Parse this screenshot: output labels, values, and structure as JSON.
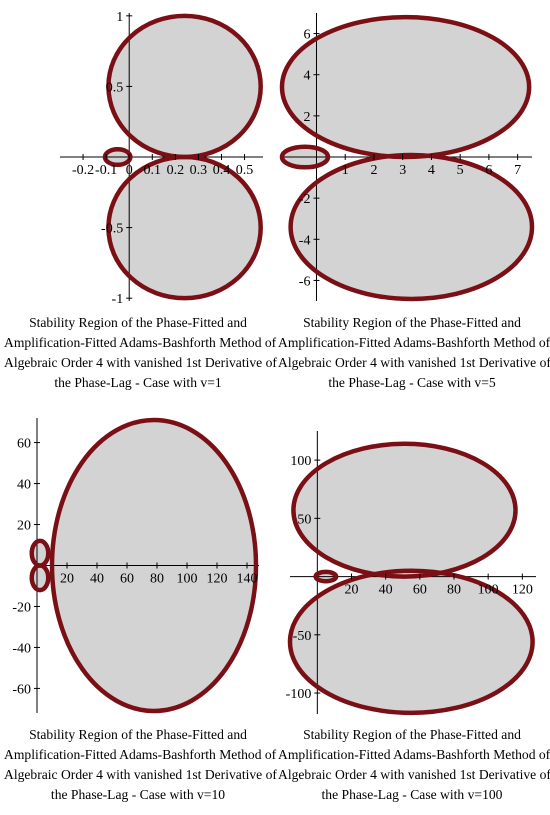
{
  "figure": {
    "panels": [
      {
        "caption": [
          "Stability Region of the Phase-Fitted and",
          "Amplification-Fitted Adams-Bashforth Method of",
          "Algebraic Order 4 with vanished 1st Derivative of",
          "the Phase-Lag  - Case with v=1"
        ]
      },
      {
        "caption": [
          "Stability Region of the Phase-Fitted and",
          "Amplification-Fitted Adams-Bashforth Method of",
          "Algebraic Order 4 with vanished 1st Derivative of",
          "the Phase-Lag  - Case with v=5"
        ]
      },
      {
        "caption": [
          "Stability Region of the Phase-Fitted and",
          "Amplification-Fitted Adams-Bashforth Method of",
          "Algebraic Order 4 with vanished 1st Derivative of",
          "the Phase-Lag  - Case with v=10"
        ]
      },
      {
        "caption": [
          "Stability Region of the Phase-Fitted and",
          "Amplification-Fitted Adams-Bashforth Method of",
          "Algebraic Order 4 with vanished 1st Derivative of",
          "the Phase-Lag  - Case with v=100"
        ]
      }
    ]
  },
  "chart_data": [
    {
      "type": "area",
      "xlim": [
        -0.3,
        0.58
      ],
      "ylim": [
        -1.02,
        1.02
      ],
      "xticks": [
        {
          "v": -0.2,
          "label": "-0.2"
        },
        {
          "v": -0.1,
          "label": "-0.1"
        },
        {
          "v": 0,
          "label": "0"
        },
        {
          "v": 0.1,
          "label": "0.1"
        },
        {
          "v": 0.2,
          "label": "0.2"
        },
        {
          "v": 0.3,
          "label": "0.3"
        },
        {
          "v": 0.4,
          "label": "0.4"
        },
        {
          "v": 0.5,
          "label": "0.5"
        }
      ],
      "yticks": [
        {
          "v": 1,
          "label": "1"
        },
        {
          "v": 0.5,
          "label": "0.5"
        },
        {
          "v": -0.5,
          "label": "-0.5"
        },
        {
          "v": -1,
          "label": "-1"
        }
      ],
      "regions": [
        {
          "cx": 0.24,
          "cy": 0.5,
          "rx": 0.33,
          "ry": 0.5
        },
        {
          "cx": 0.24,
          "cy": -0.5,
          "rx": 0.33,
          "ry": 0.5
        },
        {
          "cx": -0.05,
          "cy": 0,
          "rx": 0.055,
          "ry": 0.055
        }
      ],
      "boundary_color": "#7a1016",
      "fill_color": "#d3d3d3"
    },
    {
      "type": "area",
      "xlim": [
        -1.2,
        7.5
      ],
      "ylim": [
        -7,
        7
      ],
      "xticks": [
        {
          "v": 1,
          "label": "1"
        },
        {
          "v": 2,
          "label": "2"
        },
        {
          "v": 3,
          "label": "3"
        },
        {
          "v": 4,
          "label": "4"
        },
        {
          "v": 5,
          "label": "5"
        },
        {
          "v": 6,
          "label": "6"
        },
        {
          "v": 7,
          "label": "7"
        }
      ],
      "yticks": [
        {
          "v": 6,
          "label": "6"
        },
        {
          "v": 4,
          "label": "4"
        },
        {
          "v": 2,
          "label": "2"
        },
        {
          "v": -2,
          "label": "-2"
        },
        {
          "v": -4,
          "label": "-4"
        },
        {
          "v": -6,
          "label": "-6"
        }
      ],
      "regions": [
        {
          "cx": 3.1,
          "cy": 3.4,
          "rx": 4.3,
          "ry": 3.4
        },
        {
          "cx": 3.3,
          "cy": -3.4,
          "rx": 4.2,
          "ry": 3.5
        },
        {
          "cx": -0.4,
          "cy": 0,
          "rx": 0.8,
          "ry": 0.5
        }
      ],
      "boundary_color": "#7a1016",
      "fill_color": "#d3d3d3"
    },
    {
      "type": "area",
      "xlim": [
        0,
        148
      ],
      "ylim": [
        -72,
        72
      ],
      "xticks": [
        {
          "v": 20,
          "label": "20"
        },
        {
          "v": 40,
          "label": "40"
        },
        {
          "v": 60,
          "label": "60"
        },
        {
          "v": 80,
          "label": "80"
        },
        {
          "v": 100,
          "label": "100"
        },
        {
          "v": 120,
          "label": "120"
        },
        {
          "v": 140,
          "label": "140"
        }
      ],
      "yticks": [
        {
          "v": 60,
          "label": "60"
        },
        {
          "v": 40,
          "label": "40"
        },
        {
          "v": 20,
          "label": "20"
        },
        {
          "v": -20,
          "label": "-20"
        },
        {
          "v": -40,
          "label": "-40"
        },
        {
          "v": -60,
          "label": "-60"
        }
      ],
      "regions": [
        {
          "cx": 78,
          "cy": 0,
          "rx": 68,
          "ry": 71
        },
        {
          "cx": 2,
          "cy": 6,
          "rx": 5.5,
          "ry": 6
        },
        {
          "cx": 2,
          "cy": -6,
          "rx": 5.5,
          "ry": 6
        }
      ],
      "boundary_color": "#7a1016",
      "fill_color": "#d3d3d3"
    },
    {
      "type": "area",
      "xlim": [
        -16,
        128
      ],
      "ylim": [
        -118,
        125
      ],
      "xticks": [
        {
          "v": 20,
          "label": "20"
        },
        {
          "v": 40,
          "label": "40"
        },
        {
          "v": 60,
          "label": "60"
        },
        {
          "v": 80,
          "label": "80"
        },
        {
          "v": 100,
          "label": "100"
        },
        {
          "v": 120,
          "label": "120"
        }
      ],
      "yticks": [
        {
          "v": 100,
          "label": "100"
        },
        {
          "v": 50,
          "label": "50"
        },
        {
          "v": -50,
          "label": "-50"
        },
        {
          "v": -100,
          "label": "-100"
        }
      ],
      "regions": [
        {
          "cx": 51,
          "cy": 57,
          "rx": 65,
          "ry": 57
        },
        {
          "cx": 55,
          "cy": -56,
          "rx": 71,
          "ry": 61
        },
        {
          "cx": 5,
          "cy": 0,
          "rx": 6,
          "ry": 4
        }
      ],
      "boundary_color": "#7a1016",
      "fill_color": "#d3d3d3"
    }
  ]
}
